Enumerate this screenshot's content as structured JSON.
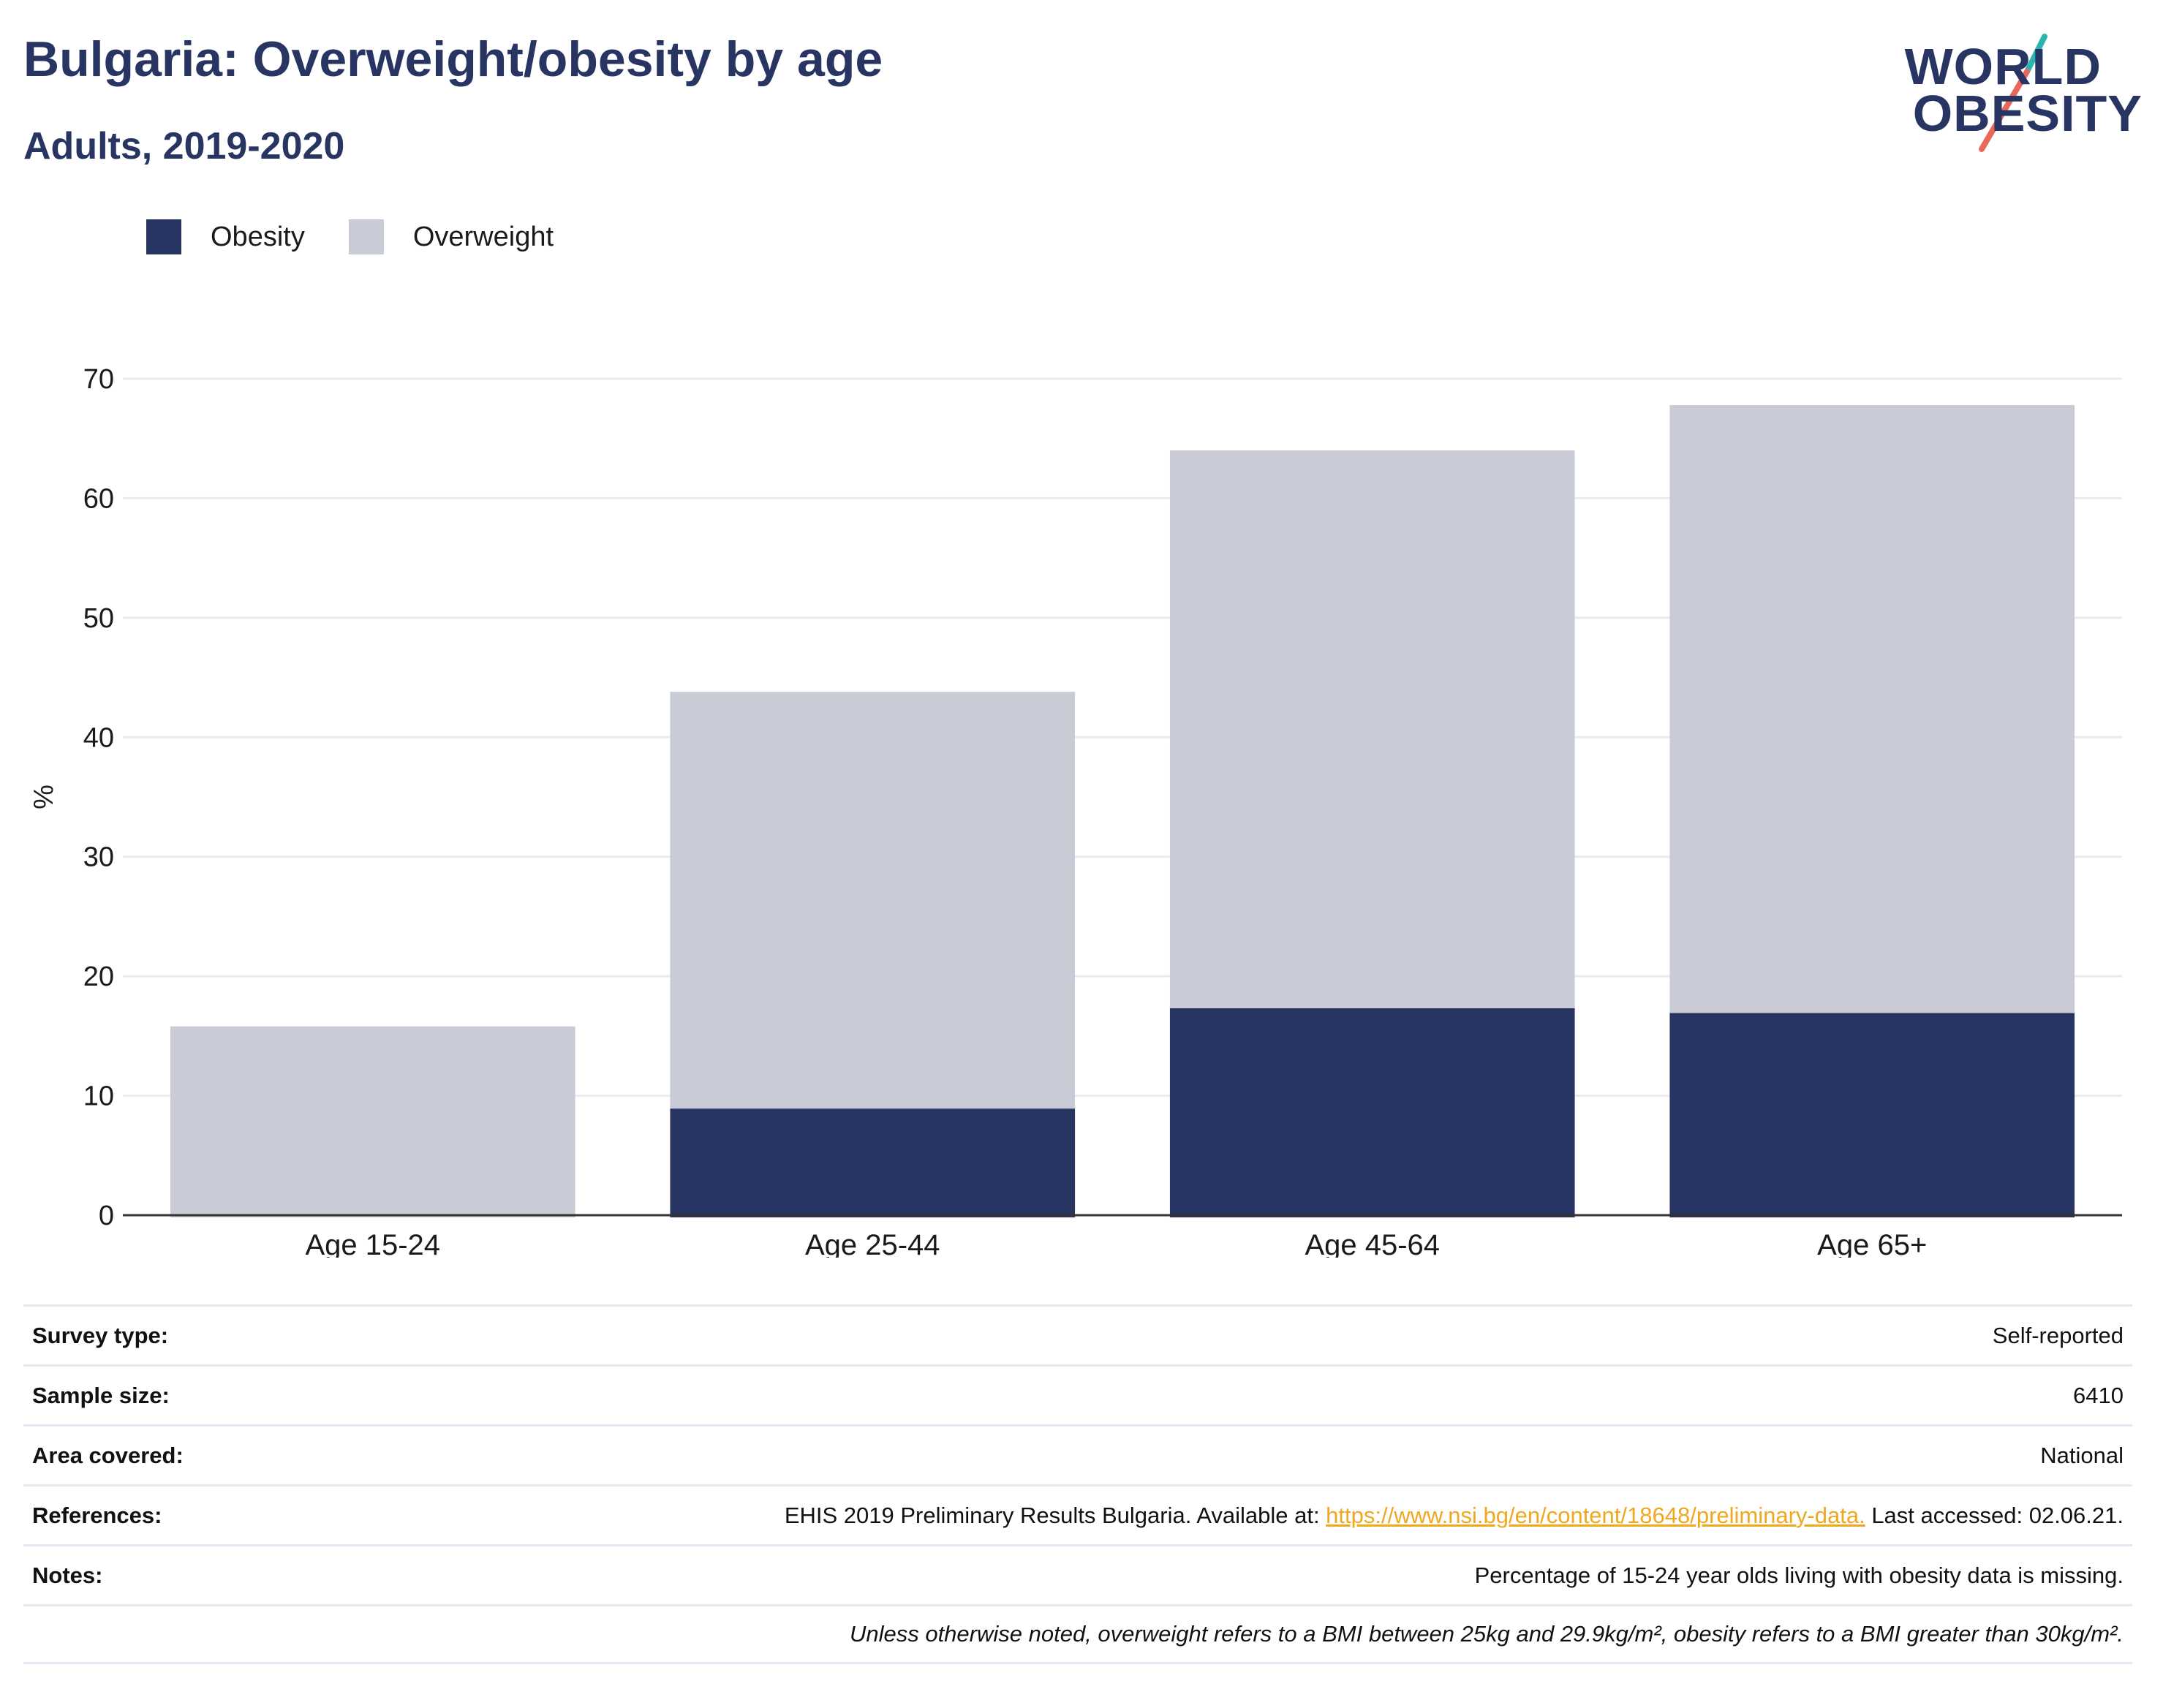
{
  "header": {
    "title": "Bulgaria: Overweight/obesity by age",
    "subtitle": "Adults, 2019-2020"
  },
  "logo": {
    "line1": "WORLD",
    "line2": "OBESITY"
  },
  "legend": [
    {
      "label": "Obesity",
      "color": "#283562"
    },
    {
      "label": "Overweight",
      "color": "#c9ccd7"
    }
  ],
  "chart_data": {
    "type": "bar",
    "stacked": true,
    "categories": [
      "Age 15-24",
      "Age 25-44",
      "Age 45-64",
      "Age 65+"
    ],
    "series": [
      {
        "name": "Obesity",
        "color": "#283562",
        "values": [
          null,
          9.1,
          17.5,
          17.1
        ]
      },
      {
        "name": "Overweight",
        "color": "#c9ccd7",
        "values": [
          15.8,
          34.7,
          46.5,
          50.7
        ]
      }
    ],
    "ylabel": "%",
    "ylim": [
      0,
      70
    ],
    "yticks": [
      0,
      10,
      20,
      30,
      40,
      50,
      60,
      70
    ],
    "grid": true,
    "legend_position": "top-left"
  },
  "info": {
    "survey_type": {
      "label": "Survey type:",
      "value": "Self-reported"
    },
    "sample_size": {
      "label": "Sample size:",
      "value": "6410"
    },
    "area_covered": {
      "label": "Area covered:",
      "value": "National"
    },
    "references": {
      "label": "References:",
      "prefix": "EHIS 2019 Preliminary Results Bulgaria. Available at: ",
      "link": "https://www.nsi.bg/en/content/18648/preliminary-data.",
      "suffix": " Last accessed: 02.06.21."
    },
    "notes": {
      "label": "Notes:",
      "value": "Percentage of 15-24 year olds living with obesity data is missing."
    },
    "footnote": "Unless otherwise noted, overweight refers to a BMI between 25kg and 29.9kg/m², obesity refers to a BMI greater than 30kg/m²."
  }
}
